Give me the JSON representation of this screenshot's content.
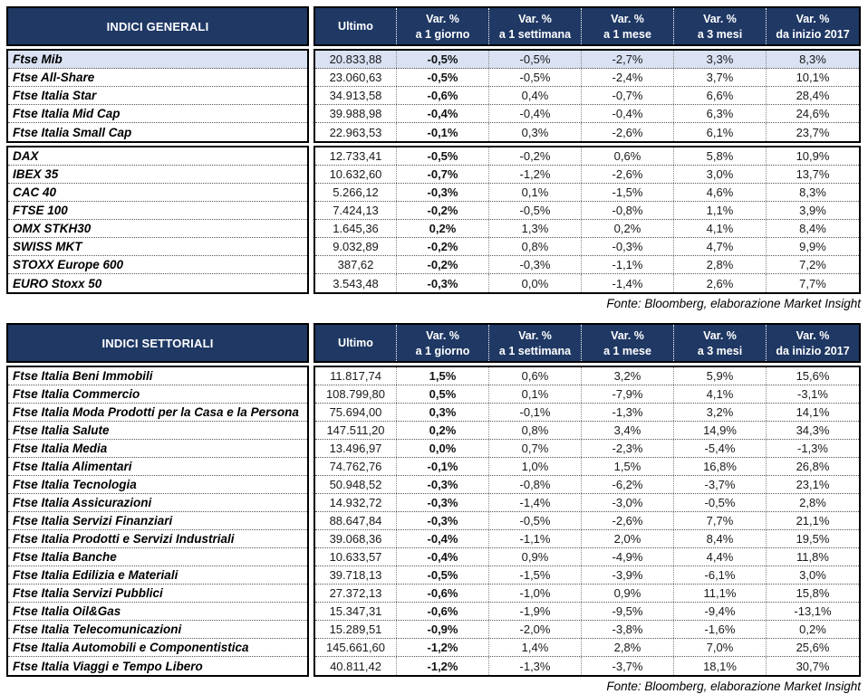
{
  "colors": {
    "header_bg": "#1F3864",
    "highlight_row": "#D9E1F2",
    "header_text": "#FFFFFF"
  },
  "columns": [
    {
      "top": "Ultimo",
      "bottom": ""
    },
    {
      "top": "Var. %",
      "bottom": "a 1 giorno"
    },
    {
      "top": "Var. %",
      "bottom": "a 1 settimana"
    },
    {
      "top": "Var. %",
      "bottom": "a 1 mese"
    },
    {
      "top": "Var. %",
      "bottom": "a 3 mesi"
    },
    {
      "top": "Var. %",
      "bottom": "da inizio 2017"
    }
  ],
  "tables": [
    {
      "title": "INDICI GENERALI",
      "footer": "Fonte: Bloomberg, elaborazione Market Insight",
      "groups": [
        {
          "rows": [
            {
              "label": "Ftse Mib",
              "highlight": true,
              "values": [
                "20.833,88",
                "-0,5%",
                "-0,5%",
                "-2,7%",
                "3,3%",
                "8,3%"
              ]
            },
            {
              "label": "Ftse All-Share",
              "highlight": false,
              "values": [
                "23.060,63",
                "-0,5%",
                "-0,5%",
                "-2,4%",
                "3,7%",
                "10,1%"
              ]
            },
            {
              "label": "Ftse Italia Star",
              "highlight": false,
              "values": [
                "34.913,58",
                "-0,6%",
                "0,4%",
                "-0,7%",
                "6,6%",
                "28,4%"
              ]
            },
            {
              "label": "Ftse Italia Mid Cap",
              "highlight": false,
              "values": [
                "39.988,98",
                "-0,4%",
                "-0,4%",
                "-0,4%",
                "6,3%",
                "24,6%"
              ]
            },
            {
              "label": "Ftse Italia Small Cap",
              "highlight": false,
              "values": [
                "22.963,53",
                "-0,1%",
                "0,3%",
                "-2,6%",
                "6,1%",
                "23,7%"
              ]
            }
          ]
        },
        {
          "rows": [
            {
              "label": "DAX",
              "highlight": false,
              "values": [
                "12.733,41",
                "-0,5%",
                "-0,2%",
                "0,6%",
                "5,8%",
                "10,9%"
              ]
            },
            {
              "label": "IBEX 35",
              "highlight": false,
              "values": [
                "10.632,60",
                "-0,7%",
                "-1,2%",
                "-2,6%",
                "3,0%",
                "13,7%"
              ]
            },
            {
              "label": "CAC 40",
              "highlight": false,
              "values": [
                "5.266,12",
                "-0,3%",
                "0,1%",
                "-1,5%",
                "4,6%",
                "8,3%"
              ]
            },
            {
              "label": "FTSE 100",
              "highlight": false,
              "values": [
                "7.424,13",
                "-0,2%",
                "-0,5%",
                "-0,8%",
                "1,1%",
                "3,9%"
              ]
            },
            {
              "label": "OMX STKH30",
              "highlight": false,
              "values": [
                "1.645,36",
                "0,2%",
                "1,3%",
                "0,2%",
                "4,1%",
                "8,4%"
              ]
            },
            {
              "label": "SWISS MKT",
              "highlight": false,
              "values": [
                "9.032,89",
                "-0,2%",
                "0,8%",
                "-0,3%",
                "4,7%",
                "9,9%"
              ]
            },
            {
              "label": "STOXX Europe 600",
              "highlight": false,
              "values": [
                "387,62",
                "-0,2%",
                "-0,3%",
                "-1,1%",
                "2,8%",
                "7,2%"
              ]
            },
            {
              "label": "EURO Stoxx 50",
              "highlight": false,
              "values": [
                "3.543,48",
                "-0,3%",
                "0,0%",
                "-1,4%",
                "2,6%",
                "7,7%"
              ]
            }
          ]
        }
      ]
    },
    {
      "title": "INDICI SETTORIALI",
      "footer": "Fonte: Bloomberg, elaborazione Market Insight",
      "groups": [
        {
          "rows": [
            {
              "label": "Ftse Italia Beni Immobili",
              "highlight": false,
              "values": [
                "11.817,74",
                "1,5%",
                "0,6%",
                "3,2%",
                "5,9%",
                "15,6%"
              ]
            },
            {
              "label": "Ftse Italia Commercio",
              "highlight": false,
              "values": [
                "108.799,80",
                "0,5%",
                "0,1%",
                "-7,9%",
                "4,1%",
                "-3,1%"
              ]
            },
            {
              "label": "Ftse Italia Moda Prodotti per la Casa e la Persona",
              "highlight": false,
              "values": [
                "75.694,00",
                "0,3%",
                "-0,1%",
                "-1,3%",
                "3,2%",
                "14,1%"
              ]
            },
            {
              "label": "Ftse Italia Salute",
              "highlight": false,
              "values": [
                "147.511,20",
                "0,2%",
                "0,8%",
                "3,4%",
                "14,9%",
                "34,3%"
              ]
            },
            {
              "label": "Ftse Italia Media",
              "highlight": false,
              "values": [
                "13.496,97",
                "0,0%",
                "0,7%",
                "-2,3%",
                "-5,4%",
                "-1,3%"
              ]
            },
            {
              "label": "Ftse Italia Alimentari",
              "highlight": false,
              "values": [
                "74.762,76",
                "-0,1%",
                "1,0%",
                "1,5%",
                "16,8%",
                "26,8%"
              ]
            },
            {
              "label": "Ftse Italia Tecnologia",
              "highlight": false,
              "values": [
                "50.948,52",
                "-0,3%",
                "-0,8%",
                "-6,2%",
                "-3,7%",
                "23,1%"
              ]
            },
            {
              "label": "Ftse Italia Assicurazioni",
              "highlight": false,
              "values": [
                "14.932,72",
                "-0,3%",
                "-1,4%",
                "-3,0%",
                "-0,5%",
                "2,8%"
              ]
            },
            {
              "label": "Ftse Italia Servizi Finanziari",
              "highlight": false,
              "values": [
                "88.647,84",
                "-0,3%",
                "-0,5%",
                "-2,6%",
                "7,7%",
                "21,1%"
              ]
            },
            {
              "label": "Ftse Italia Prodotti e Servizi Industriali",
              "highlight": false,
              "values": [
                "39.068,36",
                "-0,4%",
                "-1,1%",
                "2,0%",
                "8,4%",
                "19,5%"
              ]
            },
            {
              "label": "Ftse Italia Banche",
              "highlight": false,
              "values": [
                "10.633,57",
                "-0,4%",
                "0,9%",
                "-4,9%",
                "4,4%",
                "11,8%"
              ]
            },
            {
              "label": "Ftse Italia Edilizia e Materiali",
              "highlight": false,
              "values": [
                "39.718,13",
                "-0,5%",
                "-1,5%",
                "-3,9%",
                "-6,1%",
                "3,0%"
              ]
            },
            {
              "label": "Ftse Italia Servizi Pubblici",
              "highlight": false,
              "values": [
                "27.372,13",
                "-0,6%",
                "-1,0%",
                "0,9%",
                "11,1%",
                "15,8%"
              ]
            },
            {
              "label": "Ftse Italia Oil&Gas",
              "highlight": false,
              "values": [
                "15.347,31",
                "-0,6%",
                "-1,9%",
                "-9,5%",
                "-9,4%",
                "-13,1%"
              ]
            },
            {
              "label": "Ftse Italia Telecomunicazioni",
              "highlight": false,
              "values": [
                "15.289,51",
                "-0,9%",
                "-2,0%",
                "-3,8%",
                "-1,6%",
                "0,2%"
              ]
            },
            {
              "label": "Ftse Italia Automobili e Componentistica",
              "highlight": false,
              "values": [
                "145.661,60",
                "-1,2%",
                "1,4%",
                "2,8%",
                "7,0%",
                "25,6%"
              ]
            },
            {
              "label": "Ftse Italia Viaggi e Tempo Libero",
              "highlight": false,
              "values": [
                "40.811,42",
                "-1,2%",
                "-1,3%",
                "-3,7%",
                "18,1%",
                "30,7%"
              ]
            }
          ]
        }
      ]
    }
  ]
}
